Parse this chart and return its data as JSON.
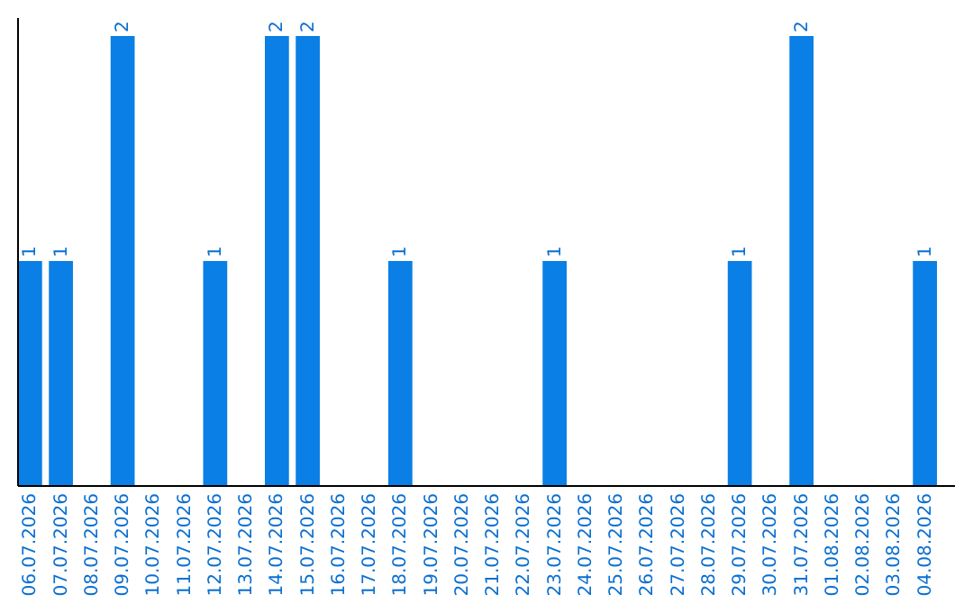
{
  "chart_data": {
    "type": "bar",
    "categories": [
      "06.07.2026",
      "07.07.2026",
      "08.07.2026",
      "09.07.2026",
      "10.07.2026",
      "11.07.2026",
      "12.07.2026",
      "13.07.2026",
      "14.07.2026",
      "15.07.2026",
      "16.07.2026",
      "17.07.2026",
      "18.07.2026",
      "19.07.2026",
      "20.07.2026",
      "21.07.2026",
      "22.07.2026",
      "23.07.2026",
      "24.07.2026",
      "25.07.2026",
      "26.07.2026",
      "27.07.2026",
      "28.07.2026",
      "29.07.2026",
      "30.07.2026",
      "31.07.2026",
      "01.08.2026",
      "02.08.2026",
      "03.08.2026",
      "04.08.2026"
    ],
    "values": [
      1,
      1,
      0,
      2,
      0,
      0,
      1,
      0,
      2,
      2,
      0,
      0,
      1,
      0,
      0,
      0,
      0,
      1,
      0,
      0,
      0,
      0,
      0,
      1,
      0,
      2,
      0,
      0,
      0,
      1
    ],
    "value_labels": [
      "1",
      "1",
      null,
      "2",
      null,
      null,
      "1",
      null,
      "2",
      "2",
      null,
      null,
      "1",
      null,
      null,
      null,
      null,
      "1",
      null,
      null,
      null,
      null,
      null,
      "1",
      null,
      "2",
      null,
      null,
      null,
      "1"
    ],
    "color": "#0a7fe6",
    "tick_labels": "x",
    "grid": false
  }
}
